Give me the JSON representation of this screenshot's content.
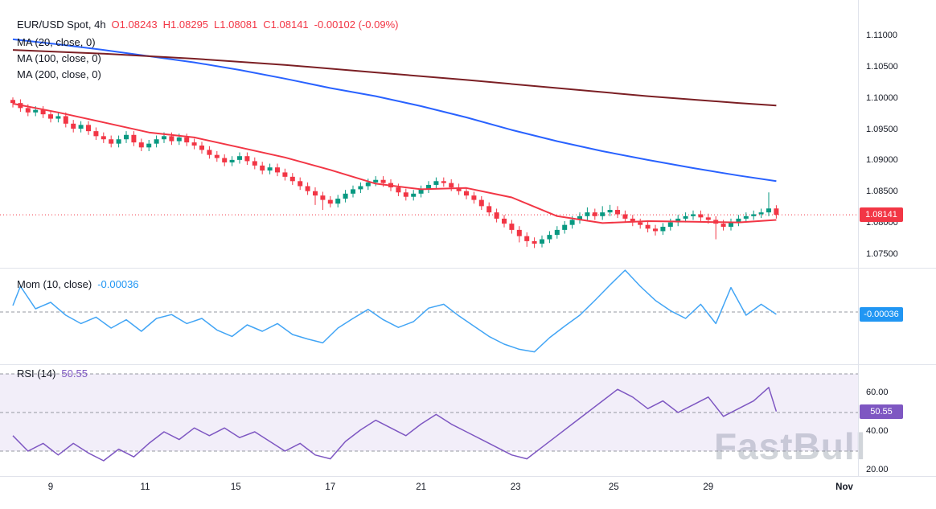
{
  "legend": {
    "symbol": "EUR/USD Spot, 4h",
    "open": "O1.08243",
    "high": "H1.08295",
    "low": "L1.08081",
    "close": "C1.08141",
    "change": "-0.00102 (-0.09%)"
  },
  "watermark": "FastBull",
  "colors": {
    "up": "#089981",
    "down": "#f23645",
    "ma20": "#f23645",
    "ma100": "#2962ff",
    "ma200": "#7b1f24",
    "mom_line": "#42a5f5",
    "mom_badge": "#2196f3",
    "rsi_line": "#7e57c2",
    "rsi_badge": "#7e57c2",
    "price_badge": "#f23645",
    "band_fill": "rgba(126,87,194,0.10)",
    "dashed": "#9598a1",
    "separator": "#e0e3eb",
    "text": "#131722"
  },
  "chart_data": {
    "type": "candlestick",
    "title": "EUR/USD Spot, 4h",
    "interval": "4h",
    "last": {
      "open": 1.08243,
      "high": 1.08295,
      "low": 1.08081,
      "close": 1.08141,
      "change": -0.00102,
      "change_pct": -0.09
    },
    "ylim": [
      1.0733,
      1.1132
    ],
    "price_ticks": [
      {
        "text": "1.11000",
        "price": 1.11
      },
      {
        "text": "1.10500",
        "price": 1.105
      },
      {
        "text": "1.10000",
        "price": 1.1
      },
      {
        "text": "1.09500",
        "price": 1.095
      },
      {
        "text": "1.09000",
        "price": 1.09
      },
      {
        "text": "1.08500",
        "price": 1.085
      },
      {
        "text": "1.08000",
        "price": 1.08
      },
      {
        "text": "1.07500",
        "price": 1.075
      }
    ],
    "time_ticks": [
      {
        "text": "9",
        "i": 5
      },
      {
        "text": "11",
        "i": 17.5
      },
      {
        "text": "15",
        "i": 29.5
      },
      {
        "text": "17",
        "i": 42
      },
      {
        "text": "21",
        "i": 54
      },
      {
        "text": "23",
        "i": 66.5
      },
      {
        "text": "25",
        "i": 79.5
      },
      {
        "text": "29",
        "i": 92
      },
      {
        "text": "Nov",
        "i": 110,
        "bold": true
      }
    ],
    "candles": [
      [
        1.0998,
        1.1002,
        1.0986,
        1.0993
      ],
      [
        1.0993,
        1.0999,
        1.0979,
        1.0985
      ],
      [
        1.0985,
        1.0991,
        1.0972,
        1.0978
      ],
      [
        1.0978,
        1.0988,
        1.0972,
        1.0982
      ],
      [
        1.0982,
        1.0988,
        1.0969,
        1.0975
      ],
      [
        1.0975,
        1.0981,
        1.0962,
        1.0968
      ],
      [
        1.0968,
        1.0978,
        1.0962,
        1.0972
      ],
      [
        1.0972,
        1.0978,
        1.0954,
        1.096
      ],
      [
        1.096,
        1.0966,
        1.0946,
        1.0952
      ],
      [
        1.0952,
        1.0964,
        1.0946,
        1.0958
      ],
      [
        1.0958,
        1.0964,
        1.0942,
        1.0948
      ],
      [
        1.0948,
        1.0954,
        1.0934,
        1.094
      ],
      [
        1.094,
        1.0946,
        1.0929,
        1.0935
      ],
      [
        1.0935,
        1.0941,
        1.0922,
        1.0928
      ],
      [
        1.0928,
        1.0941,
        1.0922,
        1.0935
      ],
      [
        1.0935,
        1.0948,
        1.0929,
        1.0942
      ],
      [
        1.0942,
        1.0948,
        1.0924,
        1.093
      ],
      [
        1.093,
        1.0936,
        1.0916,
        1.0922
      ],
      [
        1.0922,
        1.0934,
        1.0916,
        1.0928
      ],
      [
        1.0928,
        1.0941,
        1.0922,
        1.0935
      ],
      [
        1.0935,
        1.0946,
        1.0929,
        1.094
      ],
      [
        1.094,
        1.0946,
        1.0926,
        1.0932
      ],
      [
        1.0932,
        1.0944,
        1.0926,
        1.0938
      ],
      [
        1.0938,
        1.0944,
        1.0924,
        1.093
      ],
      [
        1.093,
        1.0936,
        1.0919,
        1.0925
      ],
      [
        1.0925,
        1.0931,
        1.0912,
        1.0918
      ],
      [
        1.0918,
        1.0924,
        1.0904,
        1.091
      ],
      [
        1.091,
        1.0916,
        1.0899,
        1.0905
      ],
      [
        1.0905,
        1.0911,
        1.0892,
        1.0898
      ],
      [
        1.0898,
        1.0908,
        1.0892,
        1.0902
      ],
      [
        1.0902,
        1.0914,
        1.0896,
        1.0908
      ],
      [
        1.0908,
        1.0914,
        1.0894,
        1.09
      ],
      [
        1.09,
        1.0906,
        1.0887,
        1.0893
      ],
      [
        1.0893,
        1.0899,
        1.0879,
        1.0885
      ],
      [
        1.0885,
        1.0896,
        1.0879,
        1.089
      ],
      [
        1.089,
        1.0896,
        1.0876,
        1.0882
      ],
      [
        1.0882,
        1.0888,
        1.0869,
        1.0875
      ],
      [
        1.0875,
        1.0881,
        1.0862,
        1.0868
      ],
      [
        1.0868,
        1.0874,
        1.0854,
        1.086
      ],
      [
        1.086,
        1.0866,
        1.0846,
        1.0852
      ],
      [
        1.0852,
        1.0858,
        1.083,
        1.0845
      ],
      [
        1.0845,
        1.0851,
        1.0822,
        1.0838
      ],
      [
        1.0838,
        1.0844,
        1.0826,
        1.0832
      ],
      [
        1.0832,
        1.0846,
        1.0826,
        1.084
      ],
      [
        1.084,
        1.0854,
        1.0834,
        1.0848
      ],
      [
        1.0848,
        1.0861,
        1.0842,
        1.0855
      ],
      [
        1.0855,
        1.0866,
        1.0849,
        1.086
      ],
      [
        1.086,
        1.0872,
        1.0854,
        1.0866
      ],
      [
        1.0866,
        1.0876,
        1.086,
        1.087
      ],
      [
        1.087,
        1.0876,
        1.0859,
        1.0865
      ],
      [
        1.0865,
        1.0871,
        1.0852,
        1.0858
      ],
      [
        1.0858,
        1.0864,
        1.0844,
        1.085
      ],
      [
        1.085,
        1.0856,
        1.0837,
        1.0843
      ],
      [
        1.0843,
        1.0854,
        1.0837,
        1.0848
      ],
      [
        1.0848,
        1.0861,
        1.0842,
        1.0855
      ],
      [
        1.0855,
        1.0868,
        1.0849,
        1.0862
      ],
      [
        1.0862,
        1.0874,
        1.0856,
        1.0868
      ],
      [
        1.0868,
        1.0874,
        1.0859,
        1.0865
      ],
      [
        1.0865,
        1.0871,
        1.0852,
        1.0858
      ],
      [
        1.0858,
        1.0864,
        1.0846,
        1.0852
      ],
      [
        1.0852,
        1.0858,
        1.0839,
        1.0845
      ],
      [
        1.0845,
        1.0851,
        1.0832,
        1.0838
      ],
      [
        1.0838,
        1.0844,
        1.0822,
        1.0828
      ],
      [
        1.0828,
        1.0834,
        1.0812,
        1.0818
      ],
      [
        1.0818,
        1.0824,
        1.0802,
        1.0808
      ],
      [
        1.0808,
        1.0814,
        1.0794,
        1.08
      ],
      [
        1.08,
        1.0806,
        1.0784,
        1.079
      ],
      [
        1.079,
        1.0796,
        1.077,
        1.078
      ],
      [
        1.078,
        1.0786,
        1.0763,
        1.0772
      ],
      [
        1.0772,
        1.0778,
        1.0761,
        1.0768
      ],
      [
        1.0768,
        1.0781,
        1.0762,
        1.0775
      ],
      [
        1.0775,
        1.0788,
        1.0769,
        1.0782
      ],
      [
        1.0782,
        1.0796,
        1.0776,
        1.079
      ],
      [
        1.079,
        1.0804,
        1.0784,
        1.0798
      ],
      [
        1.0798,
        1.0812,
        1.0792,
        1.0806
      ],
      [
        1.0806,
        1.0818,
        1.08,
        1.0812
      ],
      [
        1.0812,
        1.0826,
        1.0806,
        1.0818
      ],
      [
        1.0818,
        1.0824,
        1.0806,
        1.0812
      ],
      [
        1.0812,
        1.0828,
        1.0806,
        1.0818
      ],
      [
        1.0818,
        1.083,
        1.0812,
        1.0822
      ],
      [
        1.0822,
        1.0828,
        1.0809,
        1.0815
      ],
      [
        1.0815,
        1.0821,
        1.0802,
        1.0808
      ],
      [
        1.0808,
        1.0814,
        1.0796,
        1.0802
      ],
      [
        1.0802,
        1.0808,
        1.0792,
        1.0798
      ],
      [
        1.0798,
        1.0804,
        1.0786,
        1.0792
      ],
      [
        1.0792,
        1.0798,
        1.0781,
        1.0788
      ],
      [
        1.0788,
        1.0801,
        1.0782,
        1.0795
      ],
      [
        1.0795,
        1.0808,
        1.0789,
        1.0802
      ],
      [
        1.0802,
        1.0814,
        1.0796,
        1.0808
      ],
      [
        1.0808,
        1.0818,
        1.0802,
        1.0812
      ],
      [
        1.0812,
        1.0821,
        1.0806,
        1.0815
      ],
      [
        1.0815,
        1.0821,
        1.0804,
        1.081
      ],
      [
        1.081,
        1.0816,
        1.08,
        1.0806
      ],
      [
        1.0806,
        1.0812,
        1.0775,
        1.08
      ],
      [
        1.08,
        1.0806,
        1.0789,
        1.0795
      ],
      [
        1.0795,
        1.0808,
        1.0789,
        1.0802
      ],
      [
        1.0802,
        1.0814,
        1.0796,
        1.0808
      ],
      [
        1.0808,
        1.0818,
        1.0802,
        1.0812
      ],
      [
        1.0812,
        1.0821,
        1.0806,
        1.0815
      ],
      [
        1.0815,
        1.0824,
        1.0809,
        1.0818
      ],
      [
        1.0818,
        1.085,
        1.0812,
        1.08243
      ],
      [
        1.08243,
        1.08295,
        1.08081,
        1.08141
      ]
    ],
    "series": [
      {
        "name": "MA (20, close, 0)",
        "color_key": "ma20",
        "points": [
          [
            0,
            1.0992
          ],
          [
            6,
            1.0978
          ],
          [
            12,
            1.0962
          ],
          [
            18,
            1.0946
          ],
          [
            24,
            1.0938
          ],
          [
            30,
            1.0922
          ],
          [
            36,
            1.0906
          ],
          [
            42,
            1.0886
          ],
          [
            48,
            1.0864
          ],
          [
            54,
            1.0855
          ],
          [
            60,
            1.0857
          ],
          [
            66,
            1.0842
          ],
          [
            72,
            1.0812
          ],
          [
            78,
            1.0801
          ],
          [
            84,
            1.0804
          ],
          [
            90,
            1.0803
          ],
          [
            96,
            1.0802
          ],
          [
            101,
            1.0806
          ]
        ]
      },
      {
        "name": "MA (100, close, 0)",
        "color_key": "ma100",
        "points": [
          [
            0,
            1.1095
          ],
          [
            6,
            1.1087
          ],
          [
            12,
            1.1078
          ],
          [
            18,
            1.1068
          ],
          [
            24,
            1.1058
          ],
          [
            30,
            1.1046
          ],
          [
            36,
            1.1032
          ],
          [
            42,
            1.1017
          ],
          [
            48,
            1.1004
          ],
          [
            54,
            1.0988
          ],
          [
            60,
            1.097
          ],
          [
            66,
            1.095
          ],
          [
            72,
            1.0932
          ],
          [
            78,
            1.0916
          ],
          [
            84,
            1.0902
          ],
          [
            90,
            1.0889
          ],
          [
            96,
            1.0877
          ],
          [
            101,
            1.0868
          ]
        ]
      },
      {
        "name": "MA (200, close, 0)",
        "color_key": "ma200",
        "points": [
          [
            0,
            1.1078
          ],
          [
            12,
            1.1072
          ],
          [
            24,
            1.1064
          ],
          [
            36,
            1.1054
          ],
          [
            48,
            1.1042
          ],
          [
            60,
            1.103
          ],
          [
            72,
            1.1017
          ],
          [
            84,
            1.1004
          ],
          [
            96,
            1.0993
          ],
          [
            101,
            1.0989
          ]
        ]
      }
    ],
    "mom": {
      "name": "Mom (10, close)",
      "last": -0.00036,
      "points": [
        [
          0,
          0.001
        ],
        [
          1,
          0.004
        ],
        [
          3,
          0.0005
        ],
        [
          5,
          0.0015
        ],
        [
          7,
          -0.0005
        ],
        [
          9,
          -0.0018
        ],
        [
          11,
          -0.0008
        ],
        [
          13,
          -0.0025
        ],
        [
          15,
          -0.0012
        ],
        [
          17,
          -0.003
        ],
        [
          19,
          -0.001
        ],
        [
          21,
          -0.0004
        ],
        [
          23,
          -0.0018
        ],
        [
          25,
          -0.001
        ],
        [
          27,
          -0.0028
        ],
        [
          29,
          -0.0038
        ],
        [
          31,
          -0.002
        ],
        [
          33,
          -0.003
        ],
        [
          35,
          -0.0018
        ],
        [
          37,
          -0.0035
        ],
        [
          39,
          -0.0042
        ],
        [
          41,
          -0.0048
        ],
        [
          43,
          -0.0025
        ],
        [
          45,
          -0.001
        ],
        [
          47,
          0.0004
        ],
        [
          49,
          -0.0012
        ],
        [
          51,
          -0.0024
        ],
        [
          53,
          -0.0015
        ],
        [
          55,
          0.0006
        ],
        [
          57,
          0.0012
        ],
        [
          59,
          -0.0006
        ],
        [
          61,
          -0.0022
        ],
        [
          63,
          -0.0038
        ],
        [
          65,
          -0.005
        ],
        [
          67,
          -0.0058
        ],
        [
          69,
          -0.0062
        ],
        [
          71,
          -0.004
        ],
        [
          73,
          -0.0022
        ],
        [
          75,
          -0.0005
        ],
        [
          77,
          0.0018
        ],
        [
          79,
          0.0042
        ],
        [
          81,
          0.0065
        ],
        [
          83,
          0.004
        ],
        [
          85,
          0.0018
        ],
        [
          87,
          0.0002
        ],
        [
          89,
          -0.001
        ],
        [
          91,
          0.0012
        ],
        [
          93,
          -0.0018
        ],
        [
          95,
          0.0038
        ],
        [
          97,
          -0.0005
        ],
        [
          99,
          0.0012
        ],
        [
          101,
          -0.00036
        ]
      ]
    },
    "rsi": {
      "name": "RSI (14)",
      "last": 50.55,
      "bands": [
        70,
        50,
        30
      ],
      "band_fill_range": [
        30,
        70
      ],
      "ticks": [
        {
          "text": "60.00",
          "value": 60
        },
        {
          "text": "40.00",
          "value": 40
        },
        {
          "text": "20.00",
          "value": 20
        }
      ],
      "points": [
        [
          0,
          38
        ],
        [
          2,
          30
        ],
        [
          4,
          34
        ],
        [
          6,
          28
        ],
        [
          8,
          34
        ],
        [
          10,
          29
        ],
        [
          12,
          25
        ],
        [
          14,
          31
        ],
        [
          16,
          27
        ],
        [
          18,
          34
        ],
        [
          20,
          40
        ],
        [
          22,
          36
        ],
        [
          24,
          42
        ],
        [
          26,
          38
        ],
        [
          28,
          42
        ],
        [
          30,
          37
        ],
        [
          32,
          40
        ],
        [
          34,
          35
        ],
        [
          36,
          30
        ],
        [
          38,
          34
        ],
        [
          40,
          28
        ],
        [
          42,
          26
        ],
        [
          44,
          35
        ],
        [
          46,
          41
        ],
        [
          48,
          46
        ],
        [
          50,
          42
        ],
        [
          52,
          38
        ],
        [
          54,
          44
        ],
        [
          56,
          49
        ],
        [
          58,
          44
        ],
        [
          60,
          40
        ],
        [
          62,
          36
        ],
        [
          64,
          32
        ],
        [
          66,
          28
        ],
        [
          68,
          26
        ],
        [
          70,
          32
        ],
        [
          72,
          38
        ],
        [
          74,
          44
        ],
        [
          76,
          50
        ],
        [
          78,
          56
        ],
        [
          80,
          62
        ],
        [
          82,
          58
        ],
        [
          84,
          52
        ],
        [
          86,
          56
        ],
        [
          88,
          50
        ],
        [
          90,
          54
        ],
        [
          92,
          58
        ],
        [
          94,
          48
        ],
        [
          96,
          52
        ],
        [
          98,
          56
        ],
        [
          100,
          63
        ],
        [
          101,
          50.55
        ]
      ]
    },
    "badges": {
      "price": {
        "text": "1.08141",
        "price": 1.08141
      },
      "mom": {
        "text": "-0.00036",
        "value": -0.00036
      },
      "rsi": {
        "text": "50.55",
        "value": 50.55
      }
    }
  }
}
